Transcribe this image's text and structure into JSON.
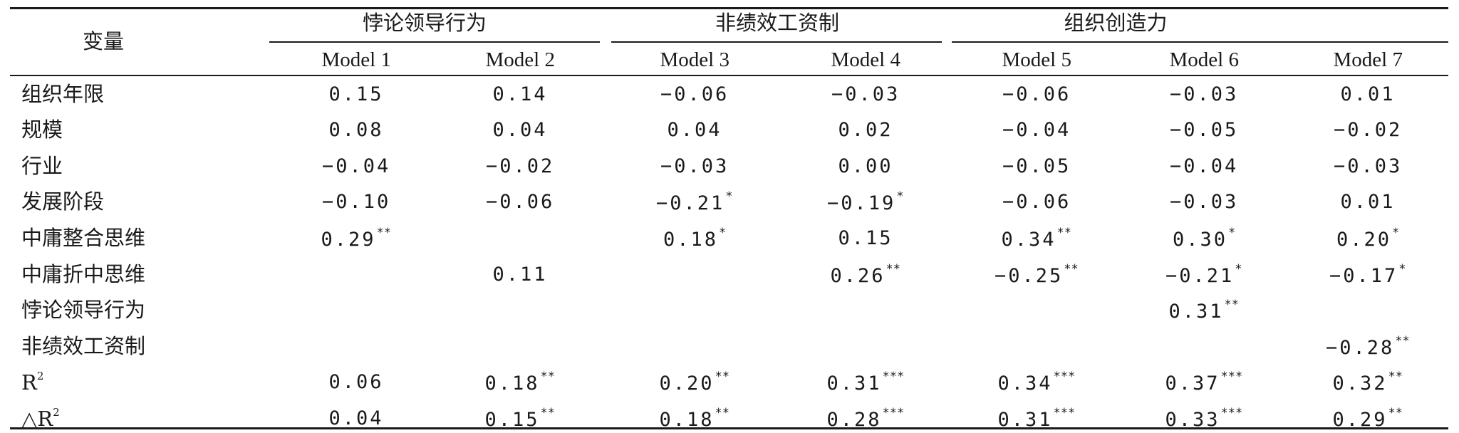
{
  "table": {
    "stub_header": "变量",
    "groups": [
      {
        "label": "悖论领导行为"
      },
      {
        "label": "非绩效工资制"
      },
      {
        "label": "组织创造力"
      }
    ],
    "models": [
      "Model 1",
      "Model 2",
      "Model 3",
      "Model 4",
      "Model 5",
      "Model 6",
      "Model 7"
    ],
    "rows": [
      {
        "label": "组织年限",
        "cells": [
          {
            "v": "0.15",
            "s": ""
          },
          {
            "v": "0.14",
            "s": ""
          },
          {
            "v": "−0.06",
            "s": ""
          },
          {
            "v": "−0.03",
            "s": ""
          },
          {
            "v": "−0.06",
            "s": ""
          },
          {
            "v": "−0.03",
            "s": ""
          },
          {
            "v": "0.01",
            "s": ""
          }
        ]
      },
      {
        "label": "规模",
        "cells": [
          {
            "v": "0.08",
            "s": ""
          },
          {
            "v": "0.04",
            "s": ""
          },
          {
            "v": "0.04",
            "s": ""
          },
          {
            "v": "0.02",
            "s": ""
          },
          {
            "v": "−0.04",
            "s": ""
          },
          {
            "v": "−0.05",
            "s": ""
          },
          {
            "v": "−0.02",
            "s": ""
          }
        ]
      },
      {
        "label": "行业",
        "cells": [
          {
            "v": "−0.04",
            "s": ""
          },
          {
            "v": "−0.02",
            "s": ""
          },
          {
            "v": "−0.03",
            "s": ""
          },
          {
            "v": "0.00",
            "s": ""
          },
          {
            "v": "−0.05",
            "s": ""
          },
          {
            "v": "−0.04",
            "s": ""
          },
          {
            "v": "−0.03",
            "s": ""
          }
        ]
      },
      {
        "label": "发展阶段",
        "cells": [
          {
            "v": "−0.10",
            "s": ""
          },
          {
            "v": "−0.06",
            "s": ""
          },
          {
            "v": "−0.21",
            "s": "*"
          },
          {
            "v": "−0.19",
            "s": "*"
          },
          {
            "v": "−0.06",
            "s": ""
          },
          {
            "v": "−0.03",
            "s": ""
          },
          {
            "v": "0.01",
            "s": ""
          }
        ]
      },
      {
        "label": "中庸整合思维",
        "cells": [
          {
            "v": "0.29",
            "s": "**"
          },
          {
            "v": "",
            "s": ""
          },
          {
            "v": "0.18",
            "s": "*"
          },
          {
            "v": "0.15",
            "s": ""
          },
          {
            "v": "0.34",
            "s": "**"
          },
          {
            "v": "0.30",
            "s": "*"
          },
          {
            "v": "0.20",
            "s": "*"
          }
        ]
      },
      {
        "label": "中庸折中思维",
        "cells": [
          {
            "v": "",
            "s": ""
          },
          {
            "v": "0.11",
            "s": ""
          },
          {
            "v": "",
            "s": ""
          },
          {
            "v": "0.26",
            "s": "**"
          },
          {
            "v": "−0.25",
            "s": "**"
          },
          {
            "v": "−0.21",
            "s": "*"
          },
          {
            "v": "−0.17",
            "s": "*"
          }
        ]
      },
      {
        "label": "悖论领导行为",
        "cells": [
          {
            "v": "",
            "s": ""
          },
          {
            "v": "",
            "s": ""
          },
          {
            "v": "",
            "s": ""
          },
          {
            "v": "",
            "s": ""
          },
          {
            "v": "",
            "s": ""
          },
          {
            "v": "0.31",
            "s": "**"
          },
          {
            "v": "",
            "s": ""
          }
        ]
      },
      {
        "label": "非绩效工资制",
        "cells": [
          {
            "v": "",
            "s": ""
          },
          {
            "v": "",
            "s": ""
          },
          {
            "v": "",
            "s": ""
          },
          {
            "v": "",
            "s": ""
          },
          {
            "v": "",
            "s": ""
          },
          {
            "v": "",
            "s": ""
          },
          {
            "v": "−0.28",
            "s": "**"
          }
        ]
      },
      {
        "label": "R",
        "label_sup": "2",
        "cells": [
          {
            "v": "0.06",
            "s": ""
          },
          {
            "v": "0.18",
            "s": "**"
          },
          {
            "v": "0.20",
            "s": "**"
          },
          {
            "v": "0.31",
            "s": "***"
          },
          {
            "v": "0.34",
            "s": "***"
          },
          {
            "v": "0.37",
            "s": "***"
          },
          {
            "v": "0.32",
            "s": "**"
          }
        ]
      },
      {
        "label": "△R",
        "label_sup": "2",
        "cells": [
          {
            "v": "0.04",
            "s": ""
          },
          {
            "v": "0.15",
            "s": "**"
          },
          {
            "v": "0.18",
            "s": "**"
          },
          {
            "v": "0.28",
            "s": "***"
          },
          {
            "v": "0.31",
            "s": "***"
          },
          {
            "v": "0.33",
            "s": "***"
          },
          {
            "v": "0.29",
            "s": "**"
          }
        ]
      }
    ]
  }
}
